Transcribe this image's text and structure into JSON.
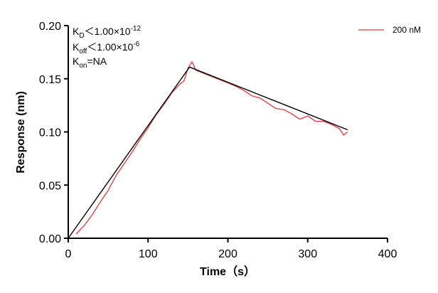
{
  "chart_data": {
    "type": "line",
    "xlabel": "Time（s）",
    "ylabel": "Response (nm)",
    "xlim": [
      0,
      400
    ],
    "ylim": [
      0,
      0.2
    ],
    "x_ticks": [
      "0",
      "100",
      "200",
      "300",
      "400"
    ],
    "y_ticks": [
      "0.00",
      "0.05",
      "0.10",
      "0.15",
      "0.20"
    ],
    "grid": false,
    "legend_position": "top-right",
    "annotations": {
      "kd": {
        "k": "K",
        "sub": "D",
        "rest": "＜1.00×10",
        "sup": "-12"
      },
      "koff": {
        "k": "K",
        "sub": "off",
        "rest": "＜1.00×10",
        "sup": "-6"
      },
      "kon": {
        "k": "K",
        "sub": "on",
        "rest": "=NA"
      }
    },
    "series": [
      {
        "name": "200 nM",
        "color": "#e0393e",
        "x": [
          10,
          20,
          30,
          40,
          50,
          60,
          70,
          80,
          90,
          100,
          110,
          120,
          130,
          140,
          145,
          150,
          155,
          160,
          170,
          180,
          190,
          200,
          210,
          220,
          230,
          240,
          250,
          260,
          270,
          280,
          290,
          300,
          310,
          320,
          330,
          340,
          345,
          350
        ],
        "y": [
          0.004,
          0.012,
          0.022,
          0.034,
          0.045,
          0.059,
          0.07,
          0.081,
          0.093,
          0.104,
          0.116,
          0.126,
          0.137,
          0.145,
          0.148,
          0.16,
          0.166,
          0.158,
          0.155,
          0.152,
          0.149,
          0.146,
          0.143,
          0.139,
          0.134,
          0.132,
          0.127,
          0.122,
          0.121,
          0.117,
          0.112,
          0.115,
          0.11,
          0.11,
          0.107,
          0.103,
          0.097,
          0.1
        ]
      },
      {
        "name": "",
        "color": "#000000",
        "x": [
          0,
          152,
          350
        ],
        "y": [
          0.0,
          0.161,
          0.102
        ]
      }
    ]
  }
}
